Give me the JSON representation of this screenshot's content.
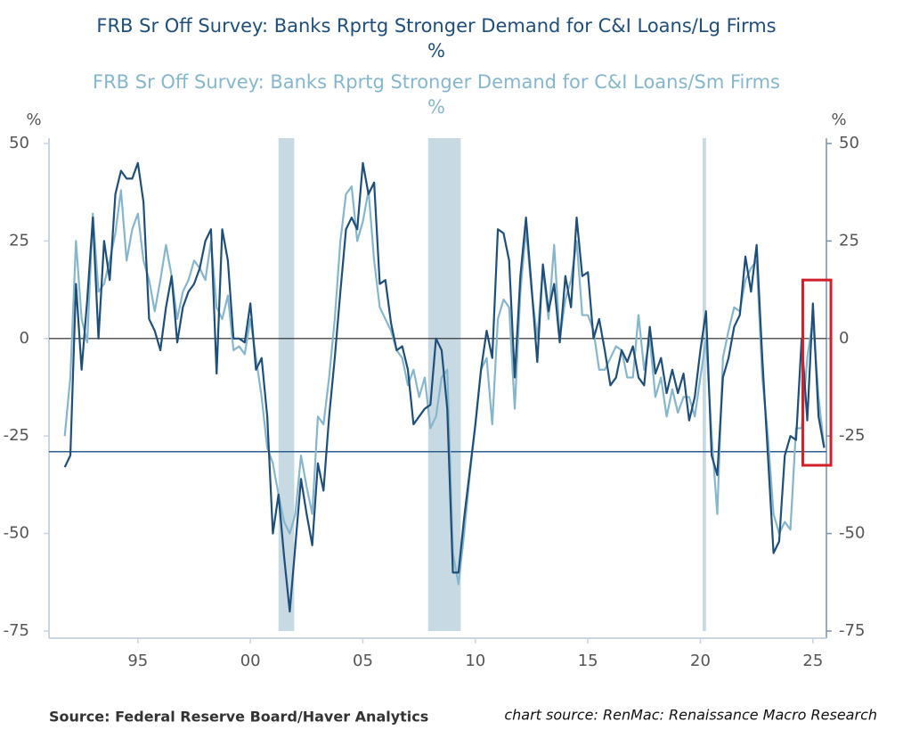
{
  "chart_data": {
    "type": "line",
    "title": "FRB Sr Off Survey: Banks Rprtg Stronger Demand for C&I Loans/Lg Firms",
    "title_unit": "%",
    "subtitle": "FRB Sr Off Survey: Banks Rprtg Stronger Demand for C&I Loans/Sm Firms",
    "subtitle_unit": "%",
    "y_axis_label": "%",
    "y2_axis_label": "%",
    "source": "Source:  Federal Reserve Board/Haver Analytics",
    "chart_source": "chart source: RenMac: Renaissance Macro Research",
    "x": [
      1991.75,
      1992,
      1992.25,
      1992.5,
      1992.75,
      1993,
      1993.25,
      1993.5,
      1993.75,
      1994,
      1994.25,
      1994.5,
      1994.75,
      1995,
      1995.25,
      1995.5,
      1995.75,
      1996,
      1996.25,
      1996.5,
      1996.75,
      1997,
      1997.25,
      1997.5,
      1997.75,
      1998,
      1998.25,
      1998.5,
      1998.75,
      1999,
      1999.25,
      1999.5,
      1999.75,
      2000,
      2000.25,
      2000.5,
      2000.75,
      2001,
      2001.25,
      2001.5,
      2001.75,
      2002,
      2002.25,
      2002.5,
      2002.75,
      2003,
      2003.25,
      2003.5,
      2003.75,
      2004,
      2004.25,
      2004.5,
      2004.75,
      2005,
      2005.25,
      2005.5,
      2005.75,
      2006,
      2006.25,
      2006.5,
      2006.75,
      2007,
      2007.25,
      2007.5,
      2007.75,
      2008,
      2008.25,
      2008.5,
      2008.75,
      2009,
      2009.25,
      2009.5,
      2009.75,
      2010,
      2010.25,
      2010.5,
      2010.75,
      2011,
      2011.25,
      2011.5,
      2011.75,
      2012,
      2012.25,
      2012.5,
      2012.75,
      2013,
      2013.25,
      2013.5,
      2013.75,
      2014,
      2014.25,
      2014.5,
      2014.75,
      2015,
      2015.25,
      2015.5,
      2015.75,
      2016,
      2016.25,
      2016.5,
      2016.75,
      2017,
      2017.25,
      2017.5,
      2017.75,
      2018,
      2018.25,
      2018.5,
      2018.75,
      2019,
      2019.25,
      2019.5,
      2019.75,
      2020,
      2020.25,
      2020.5,
      2020.75,
      2021,
      2021.25,
      2021.5,
      2021.75,
      2022,
      2022.25,
      2022.5,
      2022.75,
      2023,
      2023.25,
      2023.5,
      2023.75,
      2024,
      2024.25,
      2024.5,
      2024.75,
      2025,
      2025.25,
      2025.5
    ],
    "series": [
      {
        "name": "FRB Sr Off Survey: Banks Rprtg Stronger Demand for C&I Loans/Lg Firms",
        "color": "#1f4e79",
        "values": [
          -33,
          -30,
          14,
          -8,
          10,
          31,
          0,
          25,
          15,
          37,
          43,
          41,
          41,
          45,
          35,
          5,
          2,
          -3,
          8,
          16,
          -1,
          8,
          12,
          14,
          18,
          25,
          28,
          -9,
          28,
          20,
          0,
          0,
          -1,
          9,
          -8,
          -5,
          -20,
          -50,
          -40,
          -56,
          -70,
          -53,
          -36,
          -45,
          -53,
          -32,
          -39,
          -20,
          -5,
          12,
          28,
          31,
          28,
          45,
          37,
          40,
          14,
          15,
          4,
          -3,
          -2,
          -8,
          -22,
          -20,
          -18,
          -17,
          0,
          -3,
          -18,
          -60,
          -60,
          -46,
          -34,
          -22,
          -8,
          2,
          -5,
          28,
          27,
          20,
          -10,
          16,
          31,
          13,
          -6,
          19,
          7,
          14,
          -1,
          16,
          8,
          31,
          16,
          17,
          0,
          5,
          -3,
          -12,
          -10,
          -3,
          -6,
          -2,
          -10,
          -12,
          3,
          -9,
          -5,
          -14,
          -8,
          -14,
          -9,
          -21,
          -15,
          -3,
          7,
          -30,
          -35,
          -10,
          -5,
          3,
          6,
          21,
          12,
          24,
          -5,
          -30,
          -55,
          -52,
          -30,
          -25,
          -26,
          0,
          -21,
          9,
          -20,
          -28
        ]
      },
      {
        "name": "FRB Sr Off Survey: Banks Rprtg Stronger Demand for C&I Loans/Sm Firms",
        "color": "#86b6cc",
        "values": [
          -25,
          -10,
          25,
          5,
          -1,
          32,
          12,
          14,
          20,
          27,
          38,
          20,
          28,
          32,
          20,
          15,
          7,
          15,
          24,
          16,
          5,
          12,
          15,
          20,
          18,
          15,
          25,
          8,
          5,
          11,
          -3,
          -2,
          -4,
          5,
          -5,
          -15,
          -28,
          -32,
          -40,
          -47,
          -50,
          -45,
          -30,
          -38,
          -45,
          -20,
          -22,
          -10,
          5,
          25,
          37,
          39,
          25,
          30,
          38,
          20,
          8,
          5,
          2,
          -3,
          -5,
          -12,
          -8,
          -15,
          -10,
          -23,
          -20,
          -10,
          -8,
          -55,
          -63,
          -50,
          -35,
          -22,
          -8,
          -5,
          -22,
          5,
          10,
          8,
          -18,
          12,
          28,
          12,
          0,
          18,
          5,
          24,
          0,
          10,
          15,
          25,
          6,
          6,
          2,
          -8,
          -8,
          -5,
          -2,
          -3,
          -10,
          -10,
          6,
          -8,
          0,
          -15,
          -10,
          -20,
          -13,
          -19,
          -15,
          -15,
          -20,
          -10,
          0,
          -25,
          -45,
          -5,
          2,
          8,
          7,
          15,
          18,
          20,
          -10,
          -25,
          -45,
          -50,
          -47,
          -49,
          -23,
          -23,
          -5,
          5,
          -15,
          -28
        ]
      }
    ],
    "xlim": [
      1991.05,
      2025.6
    ],
    "xticks": [
      {
        "value": 1995,
        "label": "95"
      },
      {
        "value": 2000,
        "label": "00"
      },
      {
        "value": 2005,
        "label": "05"
      },
      {
        "value": 2010,
        "label": "10"
      },
      {
        "value": 2015,
        "label": "15"
      },
      {
        "value": 2020,
        "label": "20"
      },
      {
        "value": 2025,
        "label": "25"
      }
    ],
    "ylim": [
      -75,
      50
    ],
    "yticks": [
      50,
      25,
      0,
      -25,
      -50,
      -75
    ],
    "y2lim": [
      -75,
      50
    ],
    "y2ticks": [
      50,
      25,
      0,
      -25,
      -50,
      -75
    ],
    "shaded_periods": [
      [
        2001.25,
        2001.95
      ],
      [
        2007.9,
        2009.35
      ],
      [
        2020.1,
        2020.25
      ]
    ],
    "shade_color": "#c7dae4",
    "zero_line": 0,
    "reference_line": -29,
    "highlight": {
      "x": [
        2024.55,
        2025.8
      ],
      "y": [
        15,
        -32.5
      ],
      "color": "#d0212a"
    }
  }
}
